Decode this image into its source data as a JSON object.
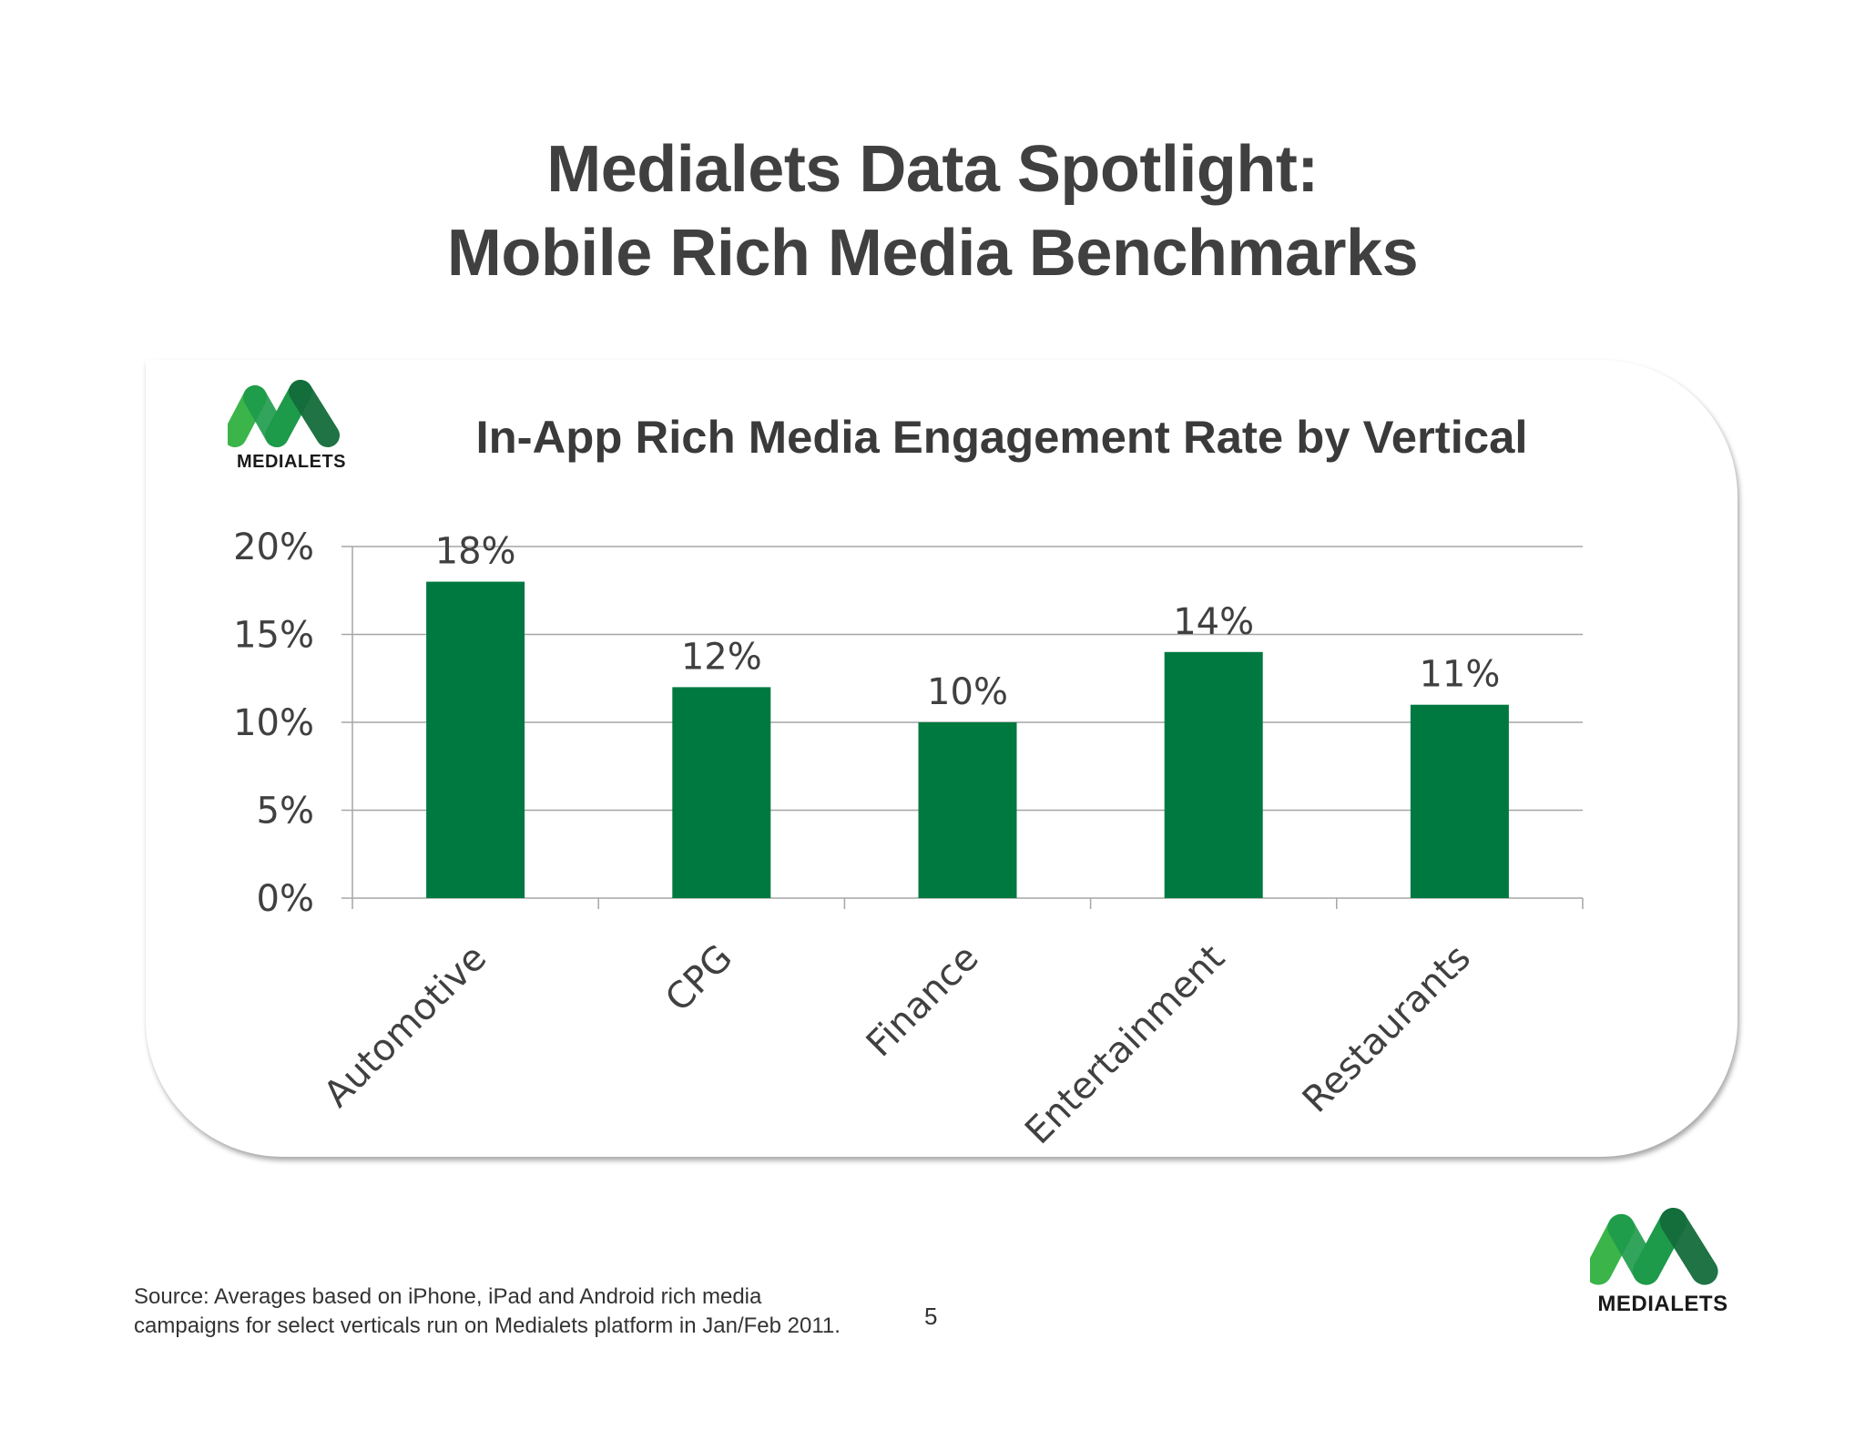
{
  "slide": {
    "title_line1": "Medialets Data Spotlight:",
    "title_line2": "Mobile Rich Media Benchmarks",
    "source_line1": "Source: Averages based on iPhone, iPad and Android rich media",
    "source_line2": "campaigns for select verticals run on Medialets platform in Jan/Feb 2011.",
    "page_number": "5"
  },
  "brand": {
    "name": "MEDIALETS",
    "colors": {
      "light_green": "#3bb44a",
      "mid_green": "#1d9a4a",
      "dark_green": "#136b3a",
      "bar": "#007940"
    }
  },
  "chart_data": {
    "type": "bar",
    "title": "In-App Rich Media Engagement Rate by Vertical",
    "categories": [
      "Automotive",
      "CPG",
      "Finance",
      "Entertainment",
      "Restaurants"
    ],
    "values": [
      18,
      12,
      10,
      14,
      11
    ],
    "data_labels": [
      "18%",
      "12%",
      "10%",
      "14%",
      "11%"
    ],
    "yticks": [
      0,
      5,
      10,
      15,
      20
    ],
    "ytick_labels": [
      "0%",
      "5%",
      "10%",
      "15%",
      "20%"
    ],
    "ylim": [
      0,
      20
    ],
    "xlabel": "",
    "ylabel": "",
    "grid": true,
    "legend": "none",
    "bar_color": "#007940"
  }
}
